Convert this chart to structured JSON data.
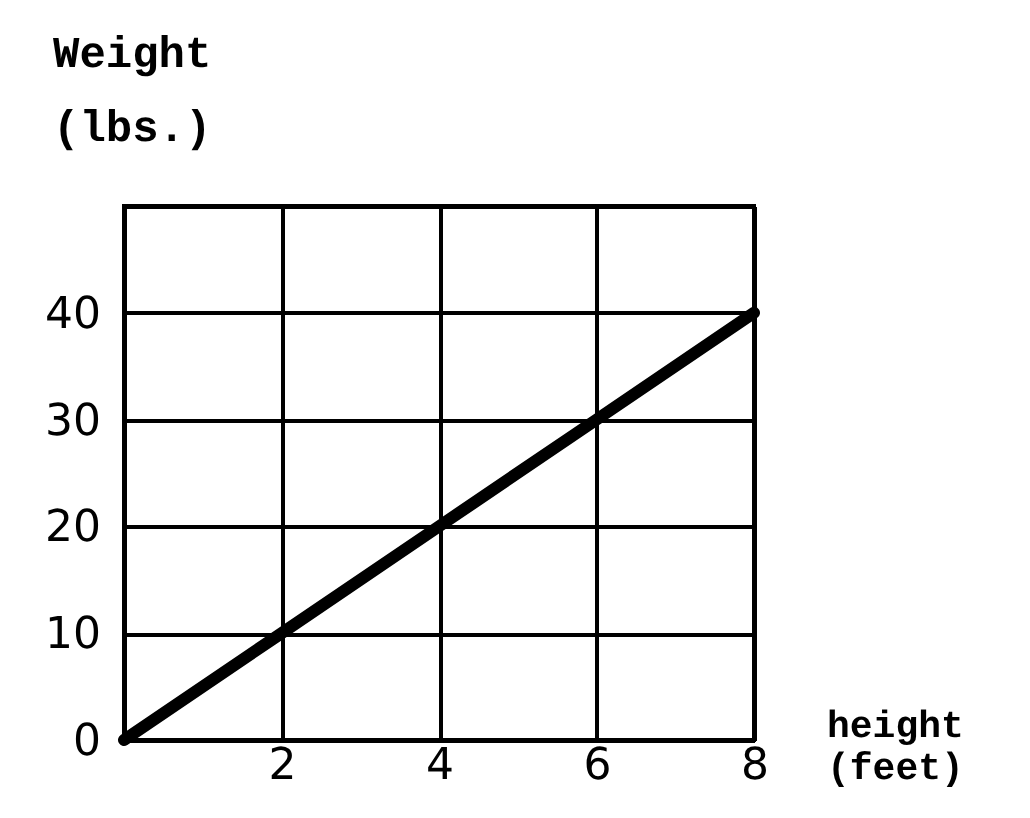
{
  "chart_data": {
    "type": "line",
    "xlabel": "height (feet)",
    "ylabel": "Weight (lbs.)",
    "x": [
      0,
      2,
      4,
      6,
      8
    ],
    "series": [
      {
        "color": "#000000",
        "values": [
          0,
          10,
          20,
          30,
          40
        ]
      }
    ],
    "xlim": [
      0,
      8
    ],
    "xticks": [
      2,
      4,
      6,
      8
    ],
    "ylim": [
      0,
      50
    ],
    "yticks": [
      0,
      10,
      20,
      30,
      40,
      {
        "value": 50,
        "label": null
      }
    ],
    "grid": true,
    "line_style": "solid"
  }
}
